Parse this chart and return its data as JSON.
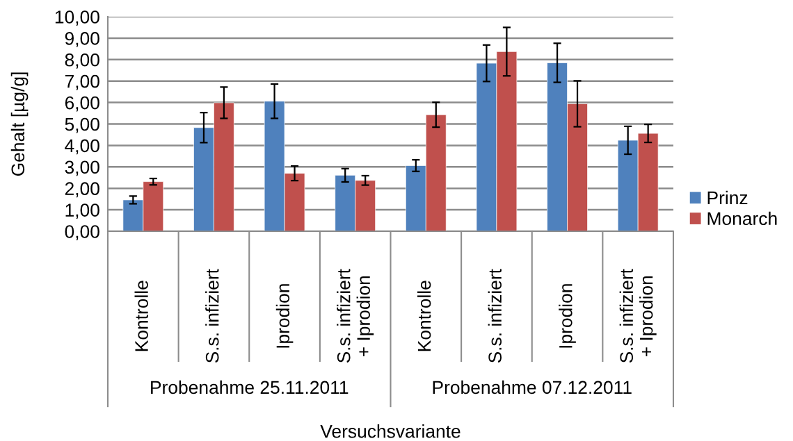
{
  "chart_data": {
    "type": "bar",
    "xlabel": "Versuchsvariante",
    "ylabel": "Gehalt [µg/g]",
    "categories": [
      "Kontrolle",
      "S.s. infiziert",
      "Iprodion",
      "S.s. infiziert\n+ Iprodion",
      "Kontrolle",
      "S.s. infiziert",
      "Iprodion",
      "S.s. infiziert\n+ Iprodion"
    ],
    "series": [
      {
        "name": "Prinz",
        "color": "#4f81bd",
        "values": [
          1.46,
          4.83,
          6.06,
          2.61,
          3.06,
          7.83,
          7.85,
          4.24
        ],
        "errors": [
          0.18,
          0.7,
          0.8,
          0.31,
          0.27,
          0.85,
          0.91,
          0.65
        ]
      },
      {
        "name": "Monarch",
        "color": "#c0504d",
        "values": [
          2.31,
          5.99,
          2.7,
          2.37,
          5.43,
          8.37,
          5.94,
          4.56
        ],
        "errors": [
          0.15,
          0.73,
          0.34,
          0.22,
          0.58,
          1.13,
          1.07,
          0.42
        ]
      }
    ],
    "annotations": [
      "Probenahme 25.11.2011",
      "Probenahme 07.12.2011"
    ],
    "ylim": [
      0,
      10
    ],
    "yticks": [
      {
        "value": 0,
        "label": "0,00"
      },
      {
        "value": 1,
        "label": "1,00"
      },
      {
        "value": 2,
        "label": "2,00"
      },
      {
        "value": 3,
        "label": "3,00"
      },
      {
        "value": 4,
        "label": "4,00"
      },
      {
        "value": 5,
        "label": "5,00"
      },
      {
        "value": 6,
        "label": "6,00"
      },
      {
        "value": 7,
        "label": "7,00"
      },
      {
        "value": 8,
        "label": "8,00"
      },
      {
        "value": 9,
        "label": "9,00"
      },
      {
        "value": 10,
        "label": "10,00"
      }
    ],
    "grid": "y",
    "legend": "right"
  }
}
